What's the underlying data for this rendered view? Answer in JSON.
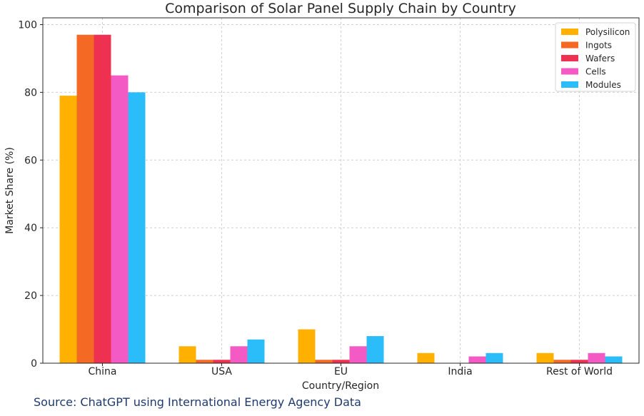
{
  "chart_data": {
    "type": "bar",
    "title": "Comparison of Solar Panel Supply Chain by Country",
    "xlabel": "Country/Region",
    "ylabel": "Market Share (%)",
    "ylim": [
      0,
      100
    ],
    "yticks": [
      0,
      20,
      40,
      60,
      80,
      100
    ],
    "grid": true,
    "legend_position": "top-right",
    "categories": [
      "China",
      "USA",
      "EU",
      "India",
      "Rest of World"
    ],
    "series": [
      {
        "name": "Polysilicon",
        "color": "#FFB000",
        "values": [
          79,
          5,
          10,
          3,
          3
        ]
      },
      {
        "name": "Ingots",
        "color": "#F46A25",
        "values": [
          97,
          1,
          1,
          0,
          1
        ]
      },
      {
        "name": "Wafers",
        "color": "#EE3150",
        "values": [
          97,
          1,
          1,
          0,
          1
        ]
      },
      {
        "name": "Cells",
        "color": "#F45AC4",
        "values": [
          85,
          5,
          5,
          2,
          3
        ]
      },
      {
        "name": "Modules",
        "color": "#2BBDFA",
        "values": [
          80,
          7,
          8,
          3,
          2
        ]
      }
    ]
  },
  "source_text": "Source:  ChatGPT using International Energy Agency Data"
}
